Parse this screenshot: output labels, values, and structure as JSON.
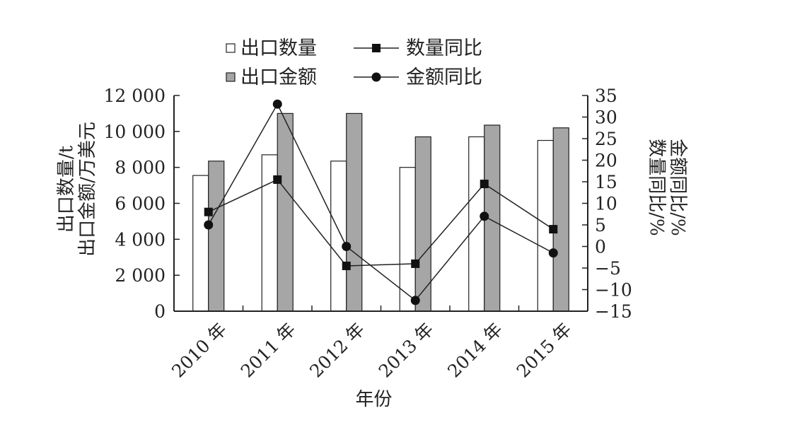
{
  "chart_data": {
    "type": "bar",
    "categories": [
      "2010 年",
      "2011 年",
      "2012 年",
      "2013 年",
      "2014 年",
      "2015 年"
    ],
    "series": [
      {
        "name": "出口数量",
        "kind": "bar",
        "axis": "left",
        "color": "#ffffff",
        "values": [
          7550,
          8700,
          8350,
          8000,
          9700,
          9500
        ]
      },
      {
        "name": "出口金额",
        "kind": "bar",
        "axis": "left",
        "color": "#a6a6a6",
        "values": [
          8350,
          11000,
          11000,
          9700,
          10350,
          10200
        ]
      },
      {
        "name": "数量同比",
        "kind": "line",
        "axis": "right",
        "marker": "square",
        "values": [
          8.0,
          15.5,
          -4.5,
          -4.0,
          14.5,
          4.0
        ]
      },
      {
        "name": "金额同比",
        "kind": "line",
        "axis": "right",
        "marker": "circle",
        "values": [
          5.0,
          33.0,
          0.0,
          -12.5,
          7.0,
          -1.5
        ]
      }
    ],
    "xlabel": "年份",
    "ylabel_lines": [
      "出口数量/t",
      "出口金额/万美元"
    ],
    "y2label_lines": [
      "数量同比/%",
      "金额同比/%"
    ],
    "ylim": [
      0,
      12000
    ],
    "y2lim": [
      -15,
      35
    ],
    "yticks": [
      "0",
      "2 000",
      "4 000",
      "6 000",
      "8 000",
      "10 000",
      "12 000"
    ],
    "y2ticks": [
      "−15",
      "−10",
      "−5",
      "0",
      "5",
      "10",
      "15",
      "20",
      "25",
      "30",
      "35"
    ],
    "legend_position": "top-center",
    "grid": false
  }
}
